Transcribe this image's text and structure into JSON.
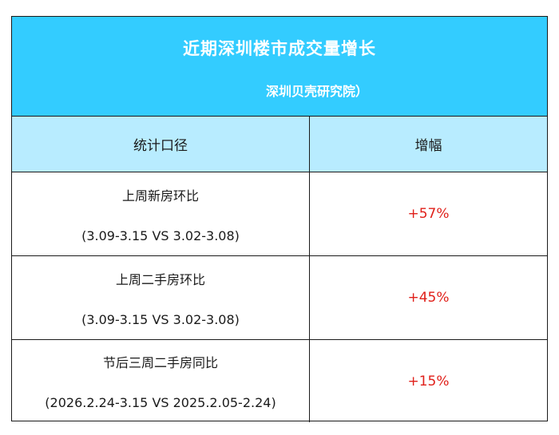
{
  "table": {
    "title": "近期深圳楼市成交量增长",
    "subtitle": "深圳贝壳研究院）",
    "header": [
      "统计口径",
      "增幅"
    ],
    "rows": [
      {
        "label": "上周新房环比",
        "period": "(3.09-3.15 VS 3.02-3.08)",
        "value": "+57%"
      },
      {
        "label": "上周二手房环比",
        "period": "(3.09-3.15 VS 3.02-3.08)",
        "value": "+45%"
      },
      {
        "label": "节后三周二手房同比",
        "period": "(2026.2.24-3.15 VS 2025.2.05-2.24)",
        "value": "+15%"
      }
    ]
  },
  "colors": {
    "title_bg": "#33ccff",
    "header_bg": "#b8ecff",
    "value_text": "#e0201a",
    "border": "#1a1a1a"
  }
}
